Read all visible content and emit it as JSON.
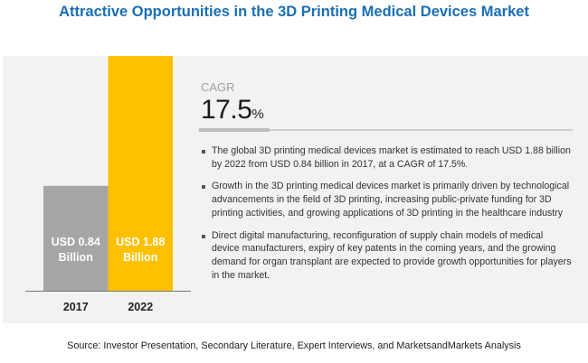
{
  "title": "Attractive Opportunities in the 3D Printing Medical Devices Market",
  "cagr": {
    "label": "CAGR",
    "value": "17.5",
    "unit": "%"
  },
  "bullets": [
    "The global 3D printing medical devices market is estimated to reach USD 1.88 billion by 2022 from USD 0.84 billion in 2017, at a CAGR of 17.5%.",
    "Growth in the 3D printing medical devices market is primarily driven by technological advancements in the field of 3D printing, increasing public-private funding for 3D printing activities, and growing applications of 3D printing in the healthcare industry",
    "Direct digital manufacturing, reconfiguration of supply chain models of medical device manufacturers, expiry of key patents in the coming years, and the growing demand for organ transplant are expected to provide growth opportunities for players in the market."
  ],
  "source": "Source: Investor Presentation, Secondary Literature, Expert Interviews, and MarketsandMarkets Analysis",
  "chart_data": {
    "type": "bar",
    "categories": [
      "2017",
      "2022"
    ],
    "values": [
      0.84,
      1.88
    ],
    "data_labels": [
      [
        "USD 0.84",
        "Billion"
      ],
      [
        "USD 1.88",
        "Billion"
      ]
    ],
    "colors": [
      "#a6a6a6",
      "#ffc000"
    ],
    "ylabel": "",
    "xlabel": "",
    "grid": false
  }
}
